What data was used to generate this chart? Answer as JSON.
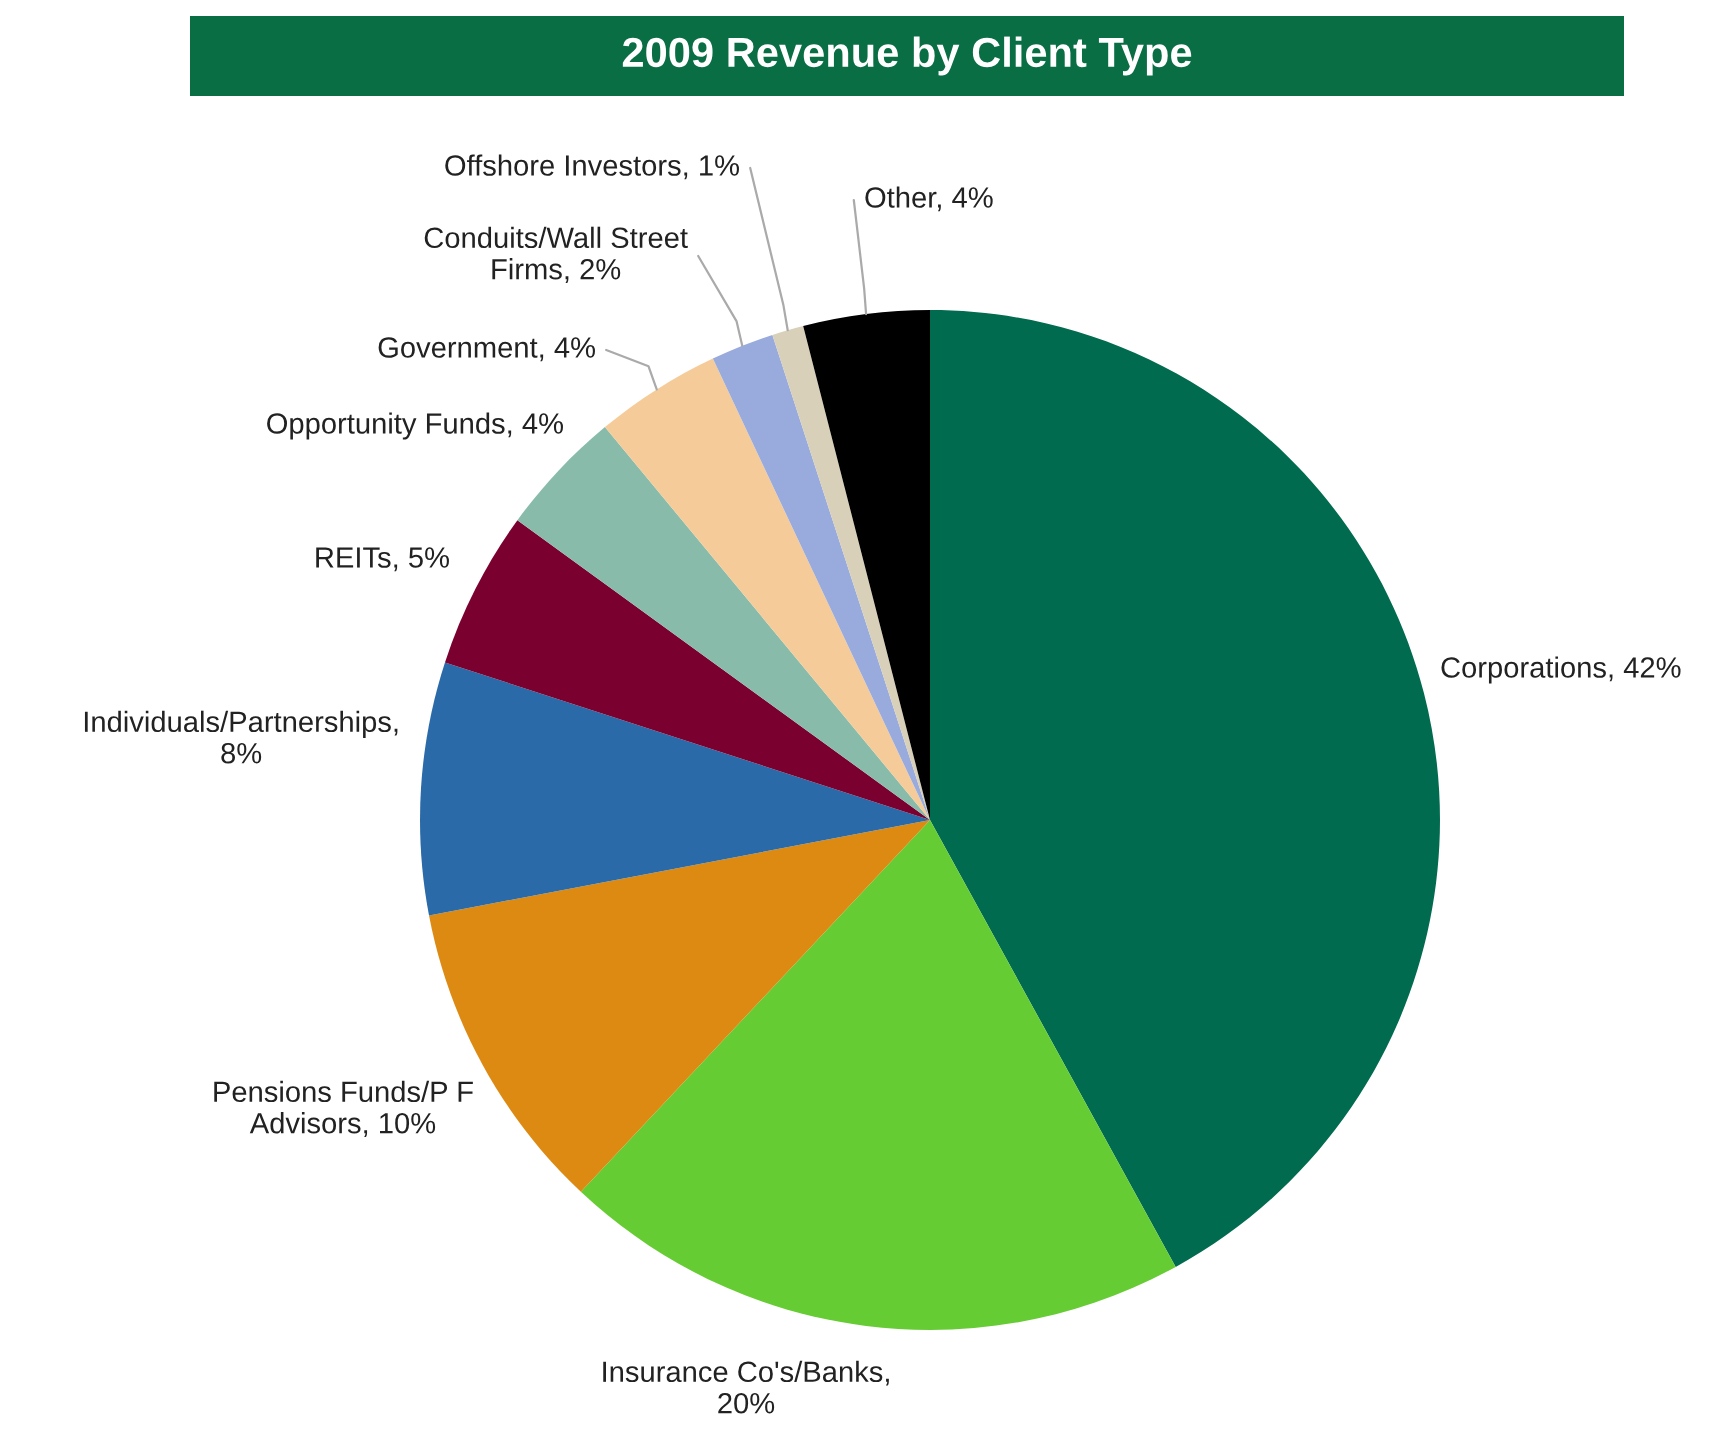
{
  "chart_data": {
    "type": "pie",
    "title": "2009 Revenue by Client Type",
    "categories": [
      "Corporations, 42%",
      "Insurance Co's/Banks,\n20%",
      "Pensions Funds/P F\nAdvisors, 10%",
      "Individuals/Partnerships,\n8%",
      "REITs, 5%",
      "Opportunity Funds, 4%",
      "Government, 4%",
      "Conduits/Wall Street\nFirms, 2%",
      "Offshore Investors, 1%",
      "Other, 4%"
    ],
    "values": [
      42,
      20,
      10,
      8,
      5,
      4,
      4,
      2,
      1,
      4
    ],
    "colors": [
      "#006b4f",
      "#66cc33",
      "#dd8a12",
      "#2a6aa8",
      "#7a0030",
      "#88bbaa",
      "#f5cc99",
      "#99aadd",
      "#d8d0b8",
      "#000000"
    ]
  }
}
